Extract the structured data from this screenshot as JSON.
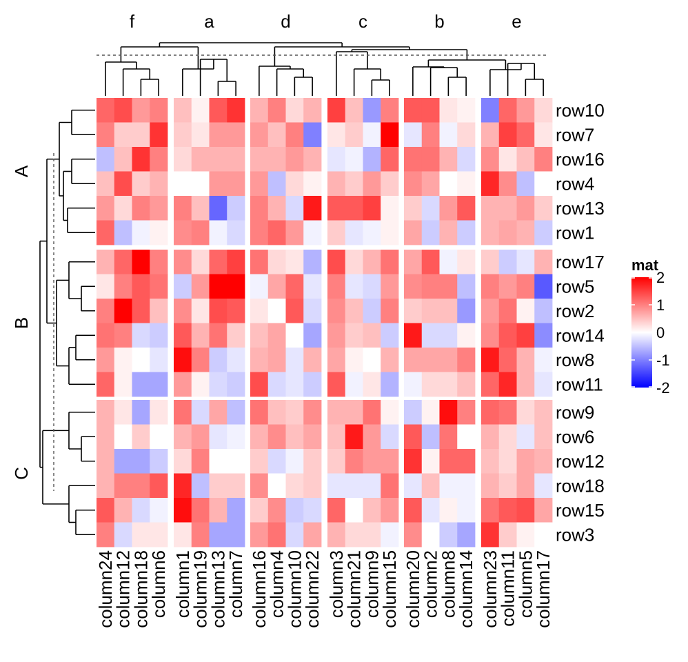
{
  "chart_data": {
    "type": "heatmap",
    "title": "",
    "xlabel": "",
    "ylabel": "",
    "column_slices": [
      {
        "label": "f",
        "columns": [
          "column24",
          "column12",
          "column18",
          "column6"
        ]
      },
      {
        "label": "a",
        "columns": [
          "column1",
          "column19",
          "column13",
          "column7"
        ]
      },
      {
        "label": "d",
        "columns": [
          "column16",
          "column4",
          "column10",
          "column22"
        ]
      },
      {
        "label": "c",
        "columns": [
          "column3",
          "column21",
          "column9",
          "column15"
        ]
      },
      {
        "label": "b",
        "columns": [
          "column20",
          "column2",
          "column8",
          "column14"
        ]
      },
      {
        "label": "e",
        "columns": [
          "column23",
          "column11",
          "column5",
          "column17"
        ]
      }
    ],
    "row_slices": [
      {
        "label": "A",
        "rows": [
          "row10",
          "row7",
          "row16",
          "row4",
          "row13",
          "row1"
        ]
      },
      {
        "label": "B",
        "rows": [
          "row17",
          "row5",
          "row2",
          "row14",
          "row8",
          "row11"
        ]
      },
      {
        "label": "C",
        "rows": [
          "row9",
          "row6",
          "row12",
          "row18",
          "row15",
          "row3"
        ]
      }
    ],
    "values": [
      [
        1.2,
        1.4,
        0.8,
        1.0,
        0.5,
        0.1,
        1.3,
        1.6,
        0.6,
        1.0,
        0.3,
        0.6,
        1.5,
        0.5,
        -0.8,
        1.0,
        1.3,
        1.3,
        0.2,
        0.1,
        -1.0,
        1.2,
        0.8,
        0.3
      ],
      [
        1.0,
        0.4,
        0.4,
        1.6,
        0.4,
        0.2,
        0.8,
        0.8,
        0.8,
        0.5,
        1.0,
        -1.0,
        0.2,
        0.4,
        -0.1,
        2.1,
        -0.2,
        1.0,
        -0.1,
        0.3,
        0.6,
        1.5,
        1.2,
        0.2
      ],
      [
        -0.5,
        0.5,
        1.6,
        1.0,
        0.3,
        0.6,
        0.6,
        0.6,
        0.6,
        0.6,
        0.8,
        0.6,
        -0.2,
        -0.1,
        -0.6,
        1.2,
        1.1,
        1.1,
        0.6,
        -0.3,
        0.9,
        0.2,
        0.5,
        1.0
      ],
      [
        0.5,
        1.4,
        0.4,
        0.6,
        0.0,
        0.0,
        0.8,
        0.8,
        0.8,
        -0.5,
        0.3,
        0.1,
        0.6,
        0.4,
        0.8,
        0.4,
        0.9,
        0.7,
        0.0,
        0.1,
        1.7,
        0.9,
        -0.5,
        0.0
      ],
      [
        0.8,
        0.3,
        1.0,
        0.8,
        1.0,
        0.5,
        -1.2,
        -0.4,
        1.0,
        0.6,
        -0.3,
        1.8,
        1.3,
        1.3,
        1.5,
        0.1,
        0.4,
        -0.3,
        0.8,
        1.3,
        0.6,
        0.6,
        0.8,
        0.4
      ],
      [
        1.2,
        -0.5,
        -0.1,
        0.1,
        0.9,
        1.0,
        -0.1,
        -0.3,
        1.0,
        1.2,
        0.8,
        -0.1,
        0.4,
        -0.2,
        -0.1,
        0.1,
        0.7,
        -0.4,
        0.6,
        -0.4,
        0.6,
        0.7,
        0.6,
        -0.4
      ],
      [
        0.6,
        1.2,
        2.1,
        1.0,
        0.9,
        0.3,
        1.2,
        1.5,
        1.1,
        0.3,
        0.2,
        -0.6,
        1.4,
        0.3,
        0.6,
        1.1,
        0.7,
        1.3,
        -0.1,
        0.2,
        0.4,
        -0.4,
        -0.2,
        0.6
      ],
      [
        0.2,
        1.0,
        1.3,
        1.1,
        -0.4,
        0.8,
        2.1,
        2.1,
        -0.1,
        0.7,
        1.2,
        -0.2,
        1.0,
        -0.2,
        -0.3,
        0.8,
        0.9,
        1.0,
        1.0,
        -0.5,
        1.0,
        0.8,
        1.0,
        -1.3
      ],
      [
        1.0,
        2.0,
        1.3,
        0.5,
        0.9,
        0.2,
        1.4,
        1.3,
        0.2,
        0.0,
        1.3,
        -0.3,
        0.9,
        0.5,
        -0.4,
        1.0,
        0.4,
        0.5,
        0.5,
        -0.8,
        0.8,
        1.1,
        0.1,
        -0.5
      ],
      [
        1.1,
        1.0,
        -0.3,
        -0.4,
        1.3,
        0.6,
        1.1,
        0.4,
        0.5,
        0.7,
        0.0,
        -0.7,
        0.8,
        0.4,
        0.5,
        -0.4,
        1.8,
        -0.3,
        -0.3,
        0.1,
        0.9,
        1.3,
        1.5,
        -0.9
      ],
      [
        0.8,
        0.1,
        0.0,
        -0.2,
        1.9,
        1.0,
        -0.4,
        -0.2,
        0.6,
        0.7,
        -0.2,
        0.6,
        0.7,
        0.1,
        0.0,
        0.6,
        0.7,
        0.7,
        0.7,
        1.0,
        1.8,
        1.2,
        0.6,
        -0.1
      ],
      [
        1.2,
        0.1,
        -0.7,
        -0.7,
        0.8,
        0.1,
        -0.3,
        -0.4,
        1.4,
        -0.3,
        -0.2,
        -0.4,
        1.3,
        -0.1,
        0.2,
        -0.6,
        -0.1,
        0.3,
        0.3,
        0.5,
        1.2,
        1.7,
        0.6,
        -0.2
      ],
      [
        0.6,
        0.2,
        -0.7,
        0.2,
        1.1,
        -0.3,
        0.7,
        -0.5,
        1.1,
        0.5,
        0.4,
        0.9,
        0.6,
        0.6,
        1.1,
        0.1,
        -0.4,
        0.1,
        1.9,
        1.0,
        1.2,
        1.1,
        0.3,
        0.5
      ],
      [
        0.6,
        0.0,
        0.4,
        0.0,
        0.6,
        0.8,
        -0.2,
        -0.1,
        0.6,
        0.9,
        0.5,
        0.7,
        0.5,
        1.8,
        0.8,
        -0.3,
        1.3,
        -0.5,
        1.1,
        0.0,
        0.6,
        0.3,
        -0.2,
        0.5
      ],
      [
        0.6,
        -0.7,
        -0.7,
        -0.4,
        0.3,
        1.0,
        0.0,
        0.0,
        0.4,
        -0.3,
        -0.1,
        0.4,
        0.4,
        1.0,
        0.8,
        0.8,
        1.6,
        0.1,
        1.2,
        1.2,
        0.5,
        0.3,
        0.7,
        0.6
      ],
      [
        0.6,
        1.0,
        1.0,
        1.3,
        1.7,
        -0.5,
        0.4,
        0.4,
        0.9,
        0.0,
        0.3,
        0.4,
        -0.2,
        -0.2,
        -0.2,
        1.1,
        -0.2,
        0.5,
        -0.1,
        -0.1,
        0.6,
        0.4,
        0.7,
        -0.2
      ],
      [
        1.3,
        0.6,
        -0.3,
        -0.1,
        1.9,
        1.1,
        0.6,
        -0.7,
        0.4,
        0.9,
        -0.4,
        -0.3,
        1.2,
        0.0,
        0.5,
        0.8,
        1.3,
        -0.2,
        0.1,
        -0.1,
        1.1,
        1.3,
        1.4,
        0.7
      ],
      [
        1.0,
        -0.3,
        0.2,
        0.2,
        0.2,
        1.0,
        -0.7,
        -0.7,
        0.8,
        1.1,
        -0.3,
        0.7,
        0.6,
        0.3,
        0.3,
        -0.1,
        0.9,
        0.0,
        -0.4,
        -0.7,
        1.6,
        0.4,
        0.1,
        0.0
      ]
    ],
    "legend": {
      "title": "mat",
      "position": "right",
      "breaks": [
        2,
        1,
        0,
        -1,
        -2
      ],
      "tick_labels": [
        "2",
        "1",
        "0",
        "-1",
        "-2"
      ],
      "colors": {
        "high": "#ff0000",
        "mid": "#ffffff",
        "low": "#0000ff"
      }
    },
    "column_dendrogram": {
      "shown": true,
      "cut_line": true
    },
    "row_dendrogram": {
      "shown": true,
      "cut_line": true
    }
  }
}
